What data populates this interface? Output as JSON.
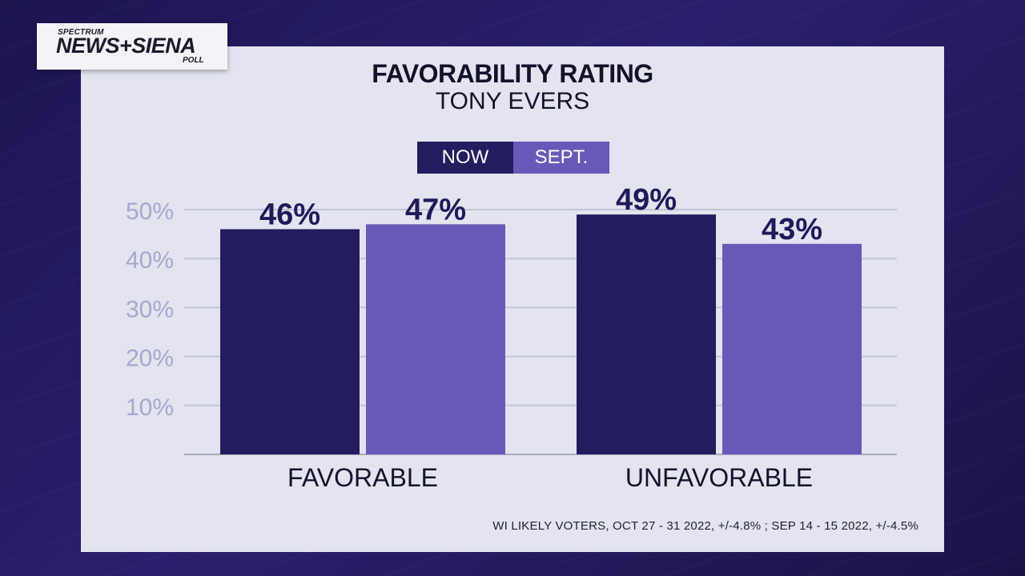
{
  "logo": {
    "small": "SPECTRUM",
    "main": "NEWS+SIENA",
    "poll": "POLL"
  },
  "footnote": "WI LIKELY VOTERS, OCT 27 - 31 2022, +/-4.8% ; SEP 14 - 15 2022, +/-4.5%",
  "colors": {
    "now": "#231c5e",
    "sept": "#6a58b8",
    "panel": "#e3e4f0",
    "tick": "#a8a6cf",
    "label": "#1f1a5a"
  },
  "chart_data": {
    "type": "bar",
    "title": "FAVORABILITY RATING",
    "subtitle": "TONY EVERS",
    "categories": [
      "FAVORABLE",
      "UNFAVORABLE"
    ],
    "series": [
      {
        "name": "NOW",
        "values": [
          46,
          49
        ],
        "labels": [
          "46%",
          "49%"
        ]
      },
      {
        "name": "SEPT.",
        "values": [
          47,
          43
        ],
        "labels": [
          "47%",
          "43%"
        ]
      }
    ],
    "ylim": [
      0,
      50
    ],
    "yticks": [
      10,
      20,
      30,
      40,
      50
    ],
    "ytick_labels": [
      "10%",
      "20%",
      "30%",
      "40%",
      "50%"
    ],
    "grid": true,
    "legend_position": "top-center",
    "xlabel": "",
    "ylabel": ""
  }
}
